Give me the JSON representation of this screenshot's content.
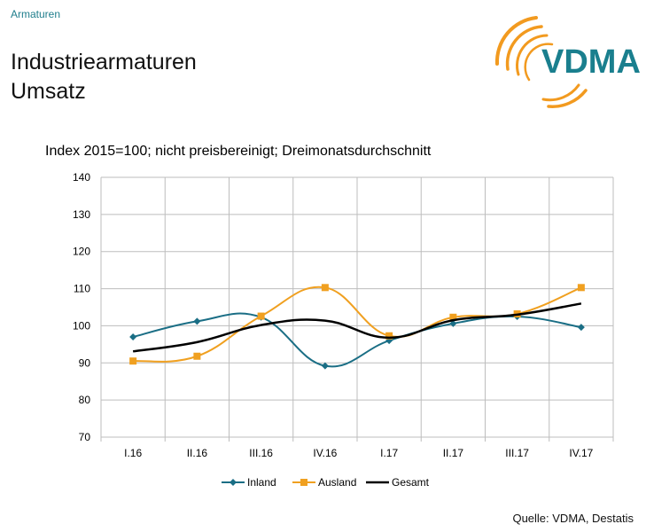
{
  "header": {
    "section": "Armaturen",
    "title_line1": "Industriearmaturen",
    "title_line2": "Umsatz",
    "logo_text": "VDMA"
  },
  "colors": {
    "inland": "#1a6e85",
    "ausland": "#f0a020",
    "gesamt": "#000000",
    "logo_teal": "#1a7f8e",
    "logo_orange": "#f29a1f"
  },
  "chart_data": {
    "type": "line",
    "title": "Index 2015=100; nicht preisbereinigt; Dreimonatsdurchschnitt",
    "categories": [
      "I.16",
      "II.16",
      "III.16",
      "IV.16",
      "I.17",
      "II.17",
      "III.17",
      "IV.17"
    ],
    "ylim": [
      70,
      140
    ],
    "yticks": [
      70,
      80,
      90,
      100,
      110,
      120,
      130,
      140
    ],
    "grid": true,
    "legend_position": "bottom",
    "series": [
      {
        "name": "Inland",
        "marker": "diamond",
        "values": [
          97,
          101.2,
          102.3,
          89.2,
          96,
          100.6,
          102.5,
          99.6
        ]
      },
      {
        "name": "Ausland",
        "marker": "square",
        "values": [
          90.5,
          91.8,
          102.6,
          110.3,
          97.3,
          102.3,
          103.2,
          110.3
        ]
      },
      {
        "name": "Gesamt",
        "marker": "none",
        "values": [
          93.1,
          95.6,
          100.2,
          101.4,
          96.8,
          101.5,
          103,
          106
        ]
      }
    ]
  },
  "footer": {
    "source": "Quelle: VDMA, Destatis"
  }
}
